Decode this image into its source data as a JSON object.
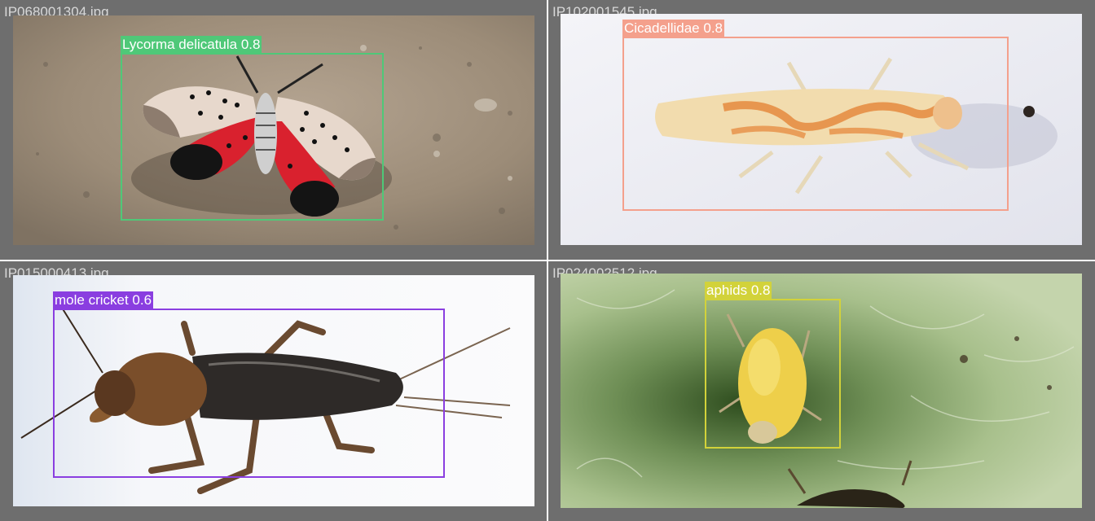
{
  "panels": [
    {
      "filename": "IP068001304.jpg",
      "detection": {
        "label": "Lycorma delicatula",
        "confidence": "0.8",
        "color": "#4fc878"
      },
      "subject_icon": "spotted-lanternfly"
    },
    {
      "filename": "IP102001545.jpg",
      "detection": {
        "label": "Cicadellidae",
        "confidence": "0.8",
        "color": "#f4a08c"
      },
      "subject_icon": "leafhopper"
    },
    {
      "filename": "IP015000413.jpg",
      "detection": {
        "label": "mole cricket",
        "confidence": "0.6",
        "color": "#8a3ee0"
      },
      "subject_icon": "mole-cricket"
    },
    {
      "filename": "IP024002512.jpg",
      "detection": {
        "label": "aphids",
        "confidence": "0.8",
        "color": "#d2d23a"
      },
      "subject_icon": "aphid"
    }
  ]
}
